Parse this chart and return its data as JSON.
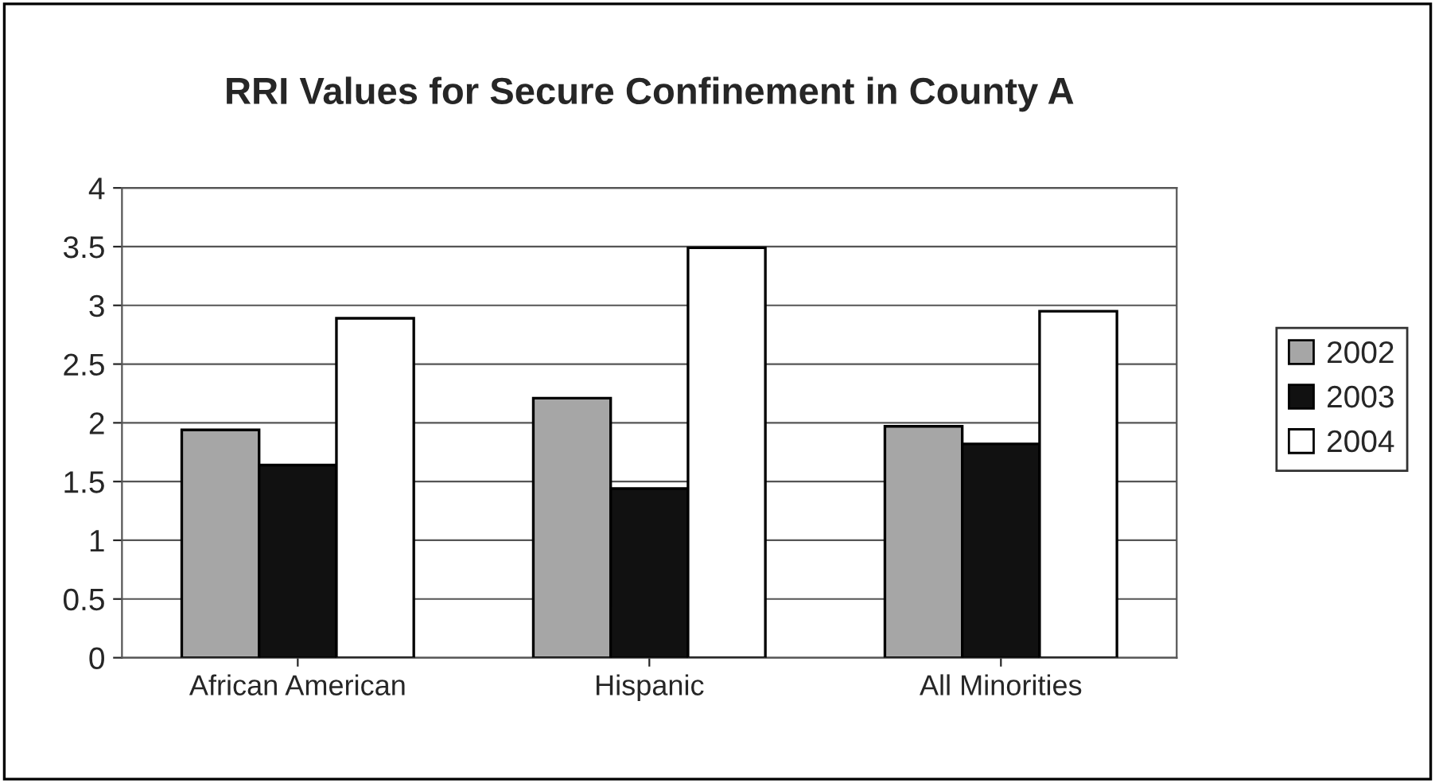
{
  "chart_data": {
    "type": "bar",
    "title": "RRI Values for Secure Confinement in County A",
    "categories": [
      "African American",
      "Hispanic",
      "All Minorities"
    ],
    "series": [
      {
        "name": "2002",
        "color": "#a6a6a6",
        "values": [
          1.94,
          2.21,
          1.97
        ]
      },
      {
        "name": "2003",
        "color": "#111111",
        "values": [
          1.64,
          1.44,
          1.82
        ]
      },
      {
        "name": "2004",
        "color": "#ffffff",
        "values": [
          2.89,
          3.49,
          2.95
        ]
      }
    ],
    "ylim": [
      0,
      4
    ],
    "yticks": [
      0,
      0.5,
      1,
      1.5,
      2,
      2.5,
      3,
      3.5,
      4
    ],
    "grid": "y",
    "legend": "right"
  }
}
